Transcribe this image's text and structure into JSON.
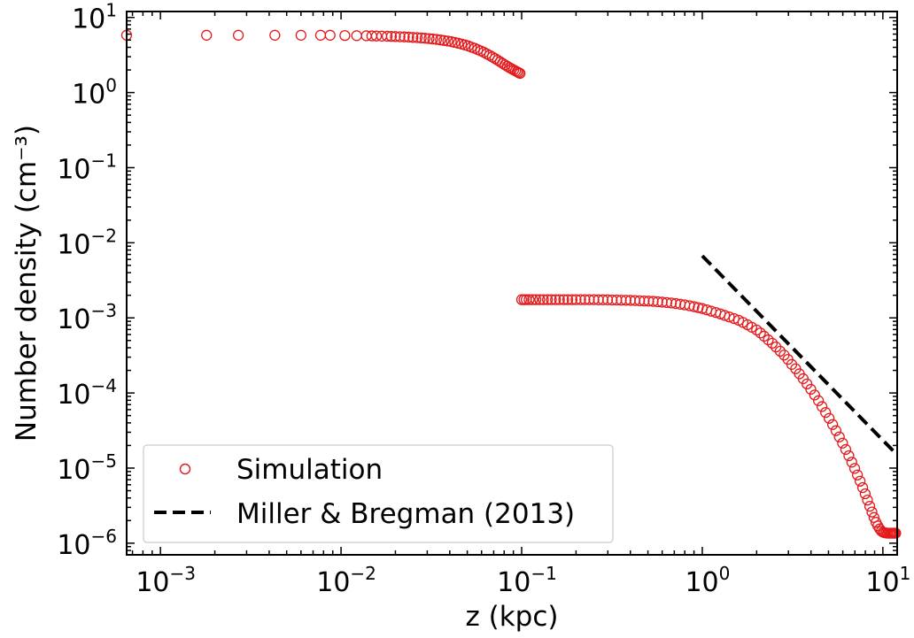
{
  "chart_data": {
    "type": "scatter",
    "xlabel": "z (kpc)",
    "ylabel": "Number density (cm⁻³)",
    "xscale": "log",
    "yscale": "log",
    "xlim": [
      0.00065,
      12
    ],
    "ylim": [
      7e-07,
      12
    ],
    "x_ticks": [
      {
        "value": 0.001,
        "base": "10",
        "exp": "−3"
      },
      {
        "value": 0.01,
        "base": "10",
        "exp": "−2"
      },
      {
        "value": 0.1,
        "base": "10",
        "exp": "−1"
      },
      {
        "value": 1,
        "base": "10",
        "exp": "0"
      },
      {
        "value": 10,
        "base": "10",
        "exp": "1"
      }
    ],
    "y_ticks": [
      {
        "value": 10,
        "base": "10",
        "exp": "1"
      },
      {
        "value": 1,
        "base": "10",
        "exp": "0"
      },
      {
        "value": 0.1,
        "base": "10",
        "exp": "−1"
      },
      {
        "value": 0.01,
        "base": "10",
        "exp": "−2"
      },
      {
        "value": 0.001,
        "base": "10",
        "exp": "−3"
      },
      {
        "value": 0.0001,
        "base": "10",
        "exp": "−4"
      },
      {
        "value": 1e-05,
        "base": "10",
        "exp": "−5"
      },
      {
        "value": 1e-06,
        "base": "10",
        "exp": "−6"
      }
    ],
    "legend": {
      "position": "lower-left"
    },
    "series": [
      {
        "name": "Simulation",
        "kind": "scatter",
        "marker": "open-circle",
        "color": "#e41a1c",
        "segments": [
          {
            "x": [
              0.00065,
              0.0018,
              0.0027,
              0.0043,
              0.006,
              0.0077,
              0.0087,
              0.0105,
              0.0122,
              0.0138,
              0.0148,
              0.0157,
              0.0168,
              0.018,
              0.019,
              0.02,
              0.0212,
              0.0224,
              0.0237,
              0.025,
              0.0264,
              0.0278,
              0.0292,
              0.0307,
              0.0322,
              0.0338,
              0.0355,
              0.0372,
              0.039,
              0.0408,
              0.0426,
              0.0445,
              0.0465,
              0.0485,
              0.0506,
              0.0527,
              0.0549,
              0.0571,
              0.0594,
              0.0617,
              0.064,
              0.0664,
              0.0688,
              0.0712,
              0.0736,
              0.076,
              0.0784,
              0.0808,
              0.0832,
              0.0856,
              0.088,
              0.0903,
              0.0925,
              0.0945,
              0.0963,
              0.098
            ],
            "y": [
              5.8,
              5.8,
              5.8,
              5.8,
              5.8,
              5.8,
              5.8,
              5.75,
              5.72,
              5.7,
              5.68,
              5.66,
              5.64,
              5.62,
              5.6,
              5.57,
              5.54,
              5.51,
              5.47,
              5.43,
              5.39,
              5.34,
              5.29,
              5.23,
              5.17,
              5.1,
              5.02,
              4.94,
              4.85,
              4.75,
              4.65,
              4.54,
              4.42,
              4.3,
              4.17,
              4.03,
              3.89,
              3.74,
              3.59,
              3.44,
              3.28,
              3.13,
              2.98,
              2.84,
              2.7,
              2.57,
              2.45,
              2.34,
              2.24,
              2.15,
              2.07,
              2.0,
              1.94,
              1.89,
              1.84,
              1.8
            ]
          },
          {
            "x": [
              0.1,
              0.103,
              0.106,
              0.11,
              0.115,
              0.12,
              0.126,
              0.132,
              0.139,
              0.146,
              0.154,
              0.162,
              0.171,
              0.18,
              0.19,
              0.2,
              0.212,
              0.224,
              0.237,
              0.251,
              0.266,
              0.282,
              0.299,
              0.317,
              0.336,
              0.356,
              0.378,
              0.4,
              0.424,
              0.45,
              0.477,
              0.505,
              0.535,
              0.567,
              0.6,
              0.636,
              0.674,
              0.714,
              0.756,
              0.8,
              0.85,
              0.9,
              0.95,
              1.0,
              1.06,
              1.12,
              1.19,
              1.26,
              1.33,
              1.41,
              1.5,
              1.59,
              1.68,
              1.78,
              1.88,
              2.0,
              2.1,
              2.2,
              2.32,
              2.44,
              2.56,
              2.7,
              2.84,
              2.98,
              3.13,
              3.29,
              3.45,
              3.62,
              3.8,
              3.99,
              4.19,
              4.4,
              4.6,
              4.82,
              5.04,
              5.27,
              5.5,
              5.74,
              5.98,
              6.23,
              6.48,
              6.73,
              6.98,
              7.23,
              7.48,
              7.73,
              7.98,
              8.22,
              8.46,
              8.7,
              8.93,
              9.16,
              9.38,
              9.6,
              9.81,
              10.02,
              10.22,
              10.42,
              10.61,
              10.8,
              10.98,
              11.15,
              11.32,
              11.48,
              11.63,
              11.78
            ],
            "y": [
              0.00175,
              0.00175,
              0.00175,
              0.00175,
              0.00175,
              0.00175,
              0.00175,
              0.00175,
              0.00175,
              0.00175,
              0.00175,
              0.00175,
              0.00175,
              0.00175,
              0.00175,
              0.00175,
              0.00175,
              0.00175,
              0.00175,
              0.00175,
              0.00174,
              0.00174,
              0.00174,
              0.00173,
              0.00173,
              0.00172,
              0.00172,
              0.00171,
              0.0017,
              0.00169,
              0.00168,
              0.00167,
              0.00166,
              0.00164,
              0.00162,
              0.0016,
              0.00158,
              0.00155,
              0.00152,
              0.00149,
              0.00145,
              0.00141,
              0.00137,
              0.00133,
              0.00128,
              0.00123,
              0.00118,
              0.00113,
              0.00108,
              0.00103,
              0.00098,
              0.00093,
              0.00087,
              0.00081,
              0.00075,
              0.00069,
              0.00063,
              0.00057,
              0.00051,
              0.00046,
              0.00041,
              0.00036,
              0.00032,
              0.00028,
              0.00024,
              0.00021,
              0.00018,
              0.000155,
              0.000132,
              0.000112,
              9.4e-05,
              7.9e-05,
              6.6e-05,
              5.5e-05,
              4.6e-05,
              3.8e-05,
              3.15e-05,
              2.6e-05,
              2.15e-05,
              1.77e-05,
              1.46e-05,
              1.2e-05,
              9.9e-06,
              8.1e-06,
              6.7e-06,
              5.5e-06,
              4.55e-06,
              3.75e-06,
              3.1e-06,
              2.6e-06,
              2.2e-06,
              1.9e-06,
              1.7e-06,
              1.55e-06,
              1.45e-06,
              1.4e-06,
              1.38e-06,
              1.37e-06,
              1.36e-06,
              1.36e-06,
              1.36e-06,
              1.36e-06,
              1.36e-06,
              1.36e-06,
              1.36e-06,
              1.36e-06
            ]
          }
        ]
      },
      {
        "name": "Miller & Bregman (2013)",
        "kind": "line",
        "style": "dashed",
        "color": "#000000",
        "x": [
          1.0,
          12.0
        ],
        "y": [
          0.0067,
          1.5e-05
        ]
      }
    ]
  }
}
